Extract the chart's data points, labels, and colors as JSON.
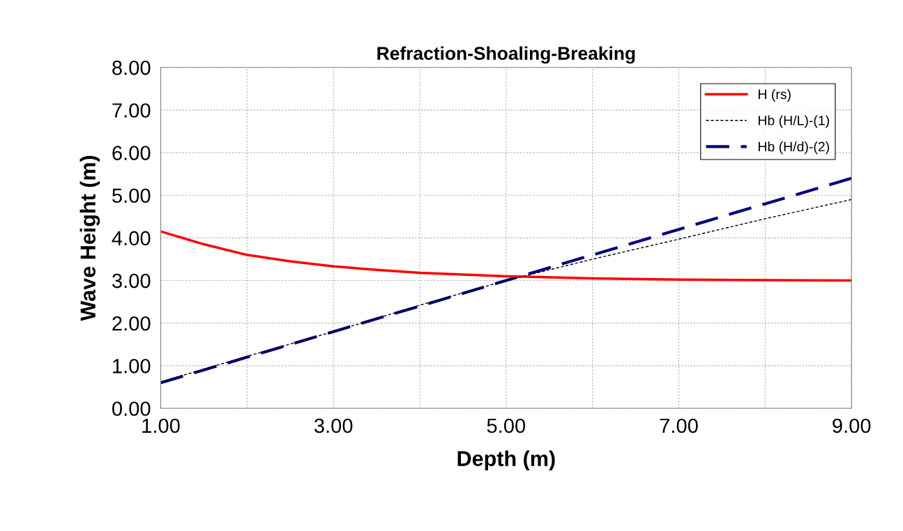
{
  "chart_data": {
    "type": "line",
    "title": "Refraction-Shoaling-Breaking",
    "xlabel": "Depth (m)",
    "ylabel": "Wave Height (m)",
    "x": [
      1,
      1.5,
      2,
      2.5,
      3,
      3.5,
      4,
      4.5,
      5,
      6,
      7,
      8,
      9
    ],
    "series": [
      {
        "name": "H (rs)",
        "color": "#ff0000",
        "line_style": "solid",
        "values": [
          4.15,
          3.85,
          3.6,
          3.45,
          3.33,
          3.25,
          3.18,
          3.14,
          3.1,
          3.05,
          3.02,
          3.01,
          3.0
        ]
      },
      {
        "name": "Hb (H/L)-(1)",
        "color": "#000000",
        "line_style": "dotted",
        "x": [
          1,
          2,
          3,
          4,
          5,
          6,
          7,
          8,
          9
        ],
        "values": [
          0.62,
          1.22,
          1.8,
          2.42,
          3.0,
          3.5,
          3.97,
          4.45,
          4.9
        ]
      },
      {
        "name": "Hb (H/d)-(2)",
        "color": "#000080",
        "line_style": "dashed",
        "x": [
          1,
          2,
          3,
          4,
          5,
          6,
          7,
          8,
          9
        ],
        "values": [
          0.6,
          1.2,
          1.8,
          2.4,
          3.0,
          3.6,
          4.2,
          4.8,
          5.4
        ]
      }
    ],
    "xlim": [
      1,
      9
    ],
    "xticks": [
      {
        "value": 1,
        "label": "1.00"
      },
      {
        "value": 2,
        "label": null
      },
      {
        "value": 3,
        "label": "3.00"
      },
      {
        "value": 4,
        "label": null
      },
      {
        "value": 5,
        "label": "5.00"
      },
      {
        "value": 6,
        "label": null
      },
      {
        "value": 7,
        "label": "7.00"
      },
      {
        "value": 8,
        "label": null
      },
      {
        "value": 9,
        "label": "9.00"
      }
    ],
    "ylim": [
      0,
      8
    ],
    "yticks": [
      {
        "value": 0,
        "label": "0.00"
      },
      {
        "value": 1,
        "label": "1.00"
      },
      {
        "value": 2,
        "label": "2.00"
      },
      {
        "value": 3,
        "label": "3.00"
      },
      {
        "value": 4,
        "label": "4.00"
      },
      {
        "value": 5,
        "label": "5.00"
      },
      {
        "value": 6,
        "label": "6.00"
      },
      {
        "value": 7,
        "label": "7.00"
      },
      {
        "value": 8,
        "label": "8.00"
      }
    ],
    "grid": true,
    "legend": "top right",
    "marker": "none"
  }
}
